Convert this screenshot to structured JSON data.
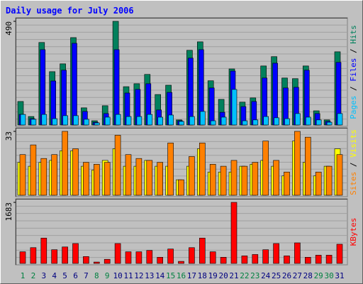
{
  "chart_data": [
    {
      "type": "bar",
      "title": "Daily usage for July 2006",
      "categories": [
        "1",
        "2",
        "3",
        "4",
        "5",
        "6",
        "7",
        "8",
        "9",
        "10",
        "11",
        "12",
        "13",
        "14",
        "15",
        "16",
        "17",
        "18",
        "19",
        "20",
        "21",
        "22",
        "23",
        "24",
        "25",
        "26",
        "27",
        "28",
        "29",
        "30",
        "31"
      ],
      "label_colors": [
        "#008040",
        "#008040",
        "#000080",
        "#000080",
        "#000080",
        "#000080",
        "#000080",
        "#008040",
        "#008040",
        "#000080",
        "#000080",
        "#000080",
        "#000080",
        "#000080",
        "#008040",
        "#008040",
        "#000080",
        "#000080",
        "#000080",
        "#000080",
        "#000080",
        "#008040",
        "#008040",
        "#000080",
        "#000080",
        "#000080",
        "#000080",
        "#000080",
        "#008040",
        "#008040",
        "#000080"
      ],
      "legend_separator": " / ",
      "series": [
        {
          "name": "Hits",
          "color": "#00805c",
          "values": [
            111,
            40,
            390,
            252,
            289,
            413,
            81,
            20,
            91,
            490,
            181,
            195,
            239,
            144,
            188,
            24,
            353,
            393,
            209,
            121,
            265,
            108,
            128,
            279,
            323,
            222,
            219,
            279,
            67,
            24,
            346
          ]
        },
        {
          "name": "Files",
          "color": "#0000ff",
          "values": [
            50,
            30,
            356,
            208,
            259,
            386,
            64,
            13,
            54,
            356,
            151,
            168,
            195,
            71,
            154,
            20,
            316,
            356,
            175,
            60,
            255,
            87,
            111,
            222,
            292,
            175,
            178,
            259,
            54,
            17,
            296
          ]
        },
        {
          "name": "Pages",
          "color": "#00c0ff",
          "values": [
            50,
            27,
            50,
            30,
            44,
            44,
            27,
            10,
            37,
            50,
            40,
            40,
            50,
            37,
            47,
            17,
            40,
            64,
            20,
            37,
            168,
            20,
            24,
            40,
            34,
            30,
            54,
            37,
            24,
            13,
            54
          ]
        }
      ],
      "ylim": [
        0,
        490
      ],
      "yticks": [
        490
      ],
      "grid": true
    },
    {
      "type": "bar",
      "legend_separator": " / ",
      "series": [
        {
          "name": "Visits",
          "color": "#ffff00",
          "values": [
            17,
            15,
            17,
            18,
            23,
            23,
            15,
            13,
            18,
            24,
            15,
            15,
            18,
            15,
            15,
            8,
            15,
            24,
            12,
            12,
            12,
            15,
            16,
            18,
            15,
            10,
            28,
            17,
            10,
            15,
            24
          ]
        },
        {
          "name": "Sites",
          "color": "#ff8000",
          "values": [
            21,
            26,
            19,
            21,
            33,
            24,
            17,
            16,
            17,
            31,
            21,
            19,
            18,
            17,
            27,
            8,
            20,
            27,
            16,
            15,
            18,
            15,
            17,
            28,
            18,
            12,
            33,
            30,
            12,
            15,
            21
          ]
        }
      ],
      "ylim": [
        0,
        33
      ],
      "yticks": [
        33
      ],
      "grid": true
    },
    {
      "type": "bar",
      "series": [
        {
          "name": "KBytes",
          "color": "#ff0000",
          "values": [
            321,
            435,
            699,
            378,
            454,
            548,
            189,
            38,
            113,
            548,
            321,
            321,
            359,
            170,
            397,
            57,
            435,
            699,
            321,
            170,
            1683,
            208,
            246,
            378,
            548,
            208,
            567,
            170,
            227,
            227,
            529
          ]
        }
      ],
      "ylim": [
        0,
        1683
      ],
      "yticks": [
        1683
      ],
      "grid": true
    }
  ]
}
